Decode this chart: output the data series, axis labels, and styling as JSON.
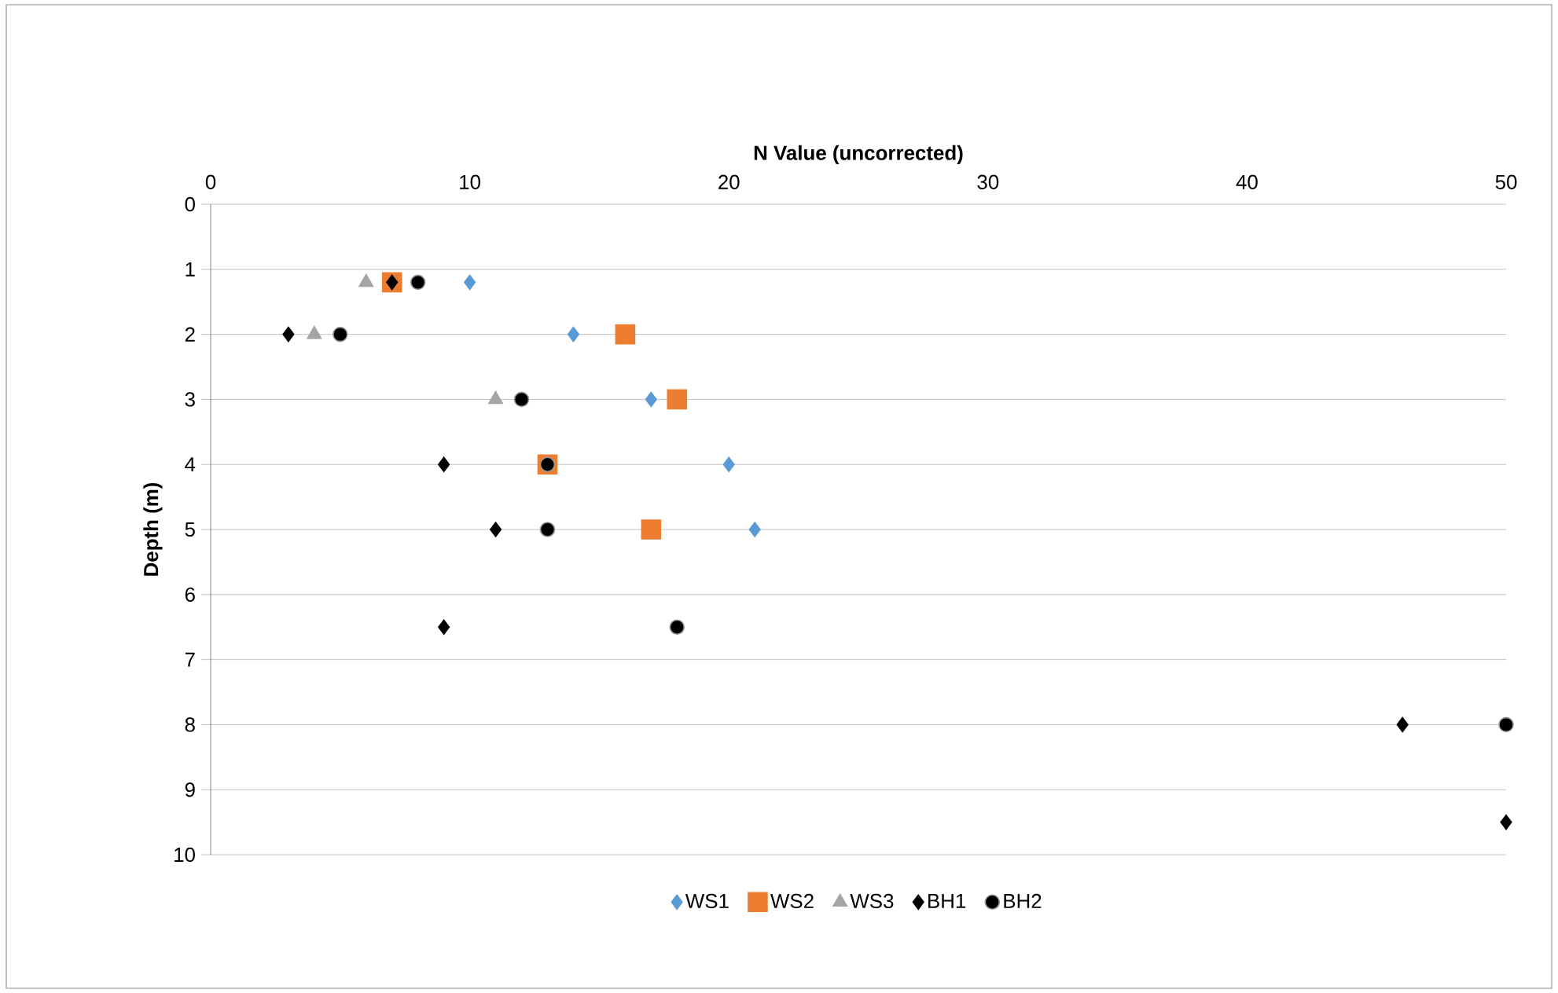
{
  "chart_data": {
    "type": "scatter",
    "xlabel": "N Value (uncorrected)",
    "ylabel": "Depth (m)",
    "xlim": [
      0,
      50
    ],
    "xticks": [
      0,
      10,
      20,
      30,
      40,
      50
    ],
    "ylim": [
      10,
      0
    ],
    "yticks": [
      0,
      1,
      2,
      3,
      4,
      5,
      6,
      7,
      8,
      9,
      10
    ],
    "grid": "y",
    "legend": "bottom",
    "series": [
      {
        "name": "WS1",
        "color": "#5b9bd5",
        "marker": "diamond",
        "x": [
          10,
          14,
          17,
          20,
          21
        ],
        "values": [
          1.2,
          2,
          3,
          4,
          5
        ]
      },
      {
        "name": "WS2",
        "color": "#ed7d31",
        "marker": "square",
        "x": [
          7,
          16,
          18,
          13,
          17
        ],
        "values": [
          1.2,
          2,
          3,
          4,
          5
        ]
      },
      {
        "name": "WS3",
        "color": "#a5a5a5",
        "marker": "triangle",
        "x": [
          6,
          4,
          11
        ],
        "values": [
          1.2,
          2,
          3
        ]
      },
      {
        "name": "BH1",
        "color": "#000000",
        "marker": "diamond",
        "x": [
          7,
          3,
          9,
          11,
          9,
          46,
          50
        ],
        "values": [
          1.2,
          2,
          4,
          5,
          6.5,
          8,
          9.5
        ]
      },
      {
        "name": "BH2",
        "color": "#000000",
        "marker": "circle",
        "x": [
          8,
          5,
          12,
          13,
          13,
          18,
          50
        ],
        "values": [
          1.2,
          2,
          3,
          4,
          5,
          6.5,
          8
        ]
      }
    ]
  }
}
